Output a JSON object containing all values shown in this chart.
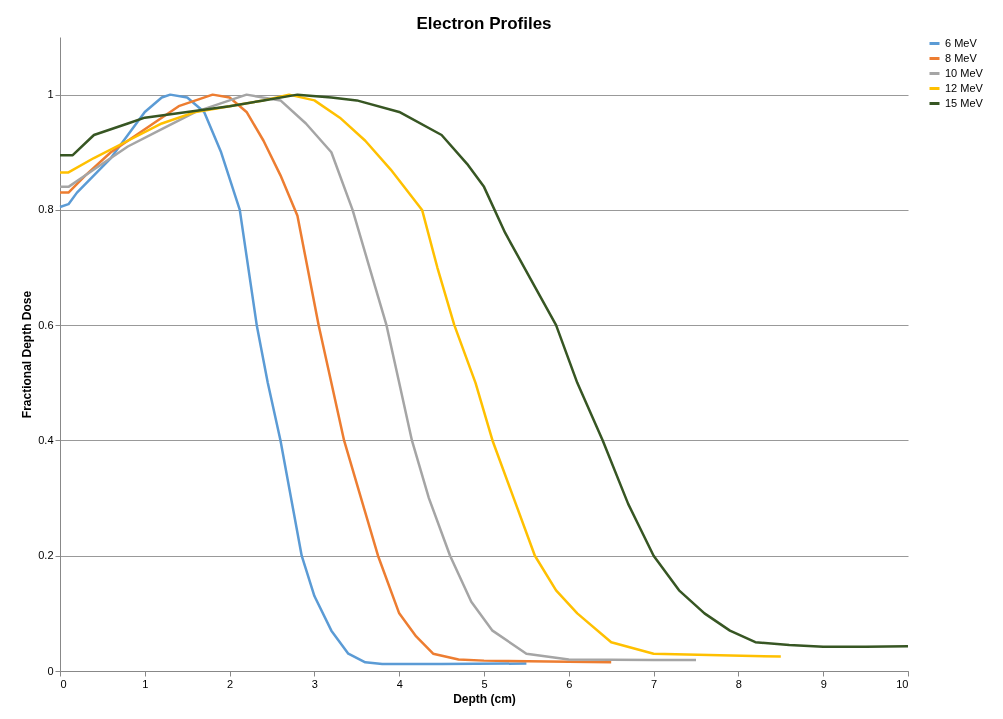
{
  "chart_data": {
    "type": "line",
    "title": "Electron Profiles",
    "xlabel": "Depth (cm)",
    "ylabel": "Fractional Depth Dose",
    "xlim": [
      0,
      10
    ],
    "xticks": [
      0,
      1,
      2,
      3,
      4,
      5,
      6,
      7,
      8,
      9,
      10
    ],
    "ylim": [
      0,
      1.1
    ],
    "yticks": [
      0,
      0.2,
      0.4,
      0.6,
      0.8,
      1
    ],
    "grid": "y",
    "legend": "right",
    "marker": "none",
    "line_style": "solid",
    "series": [
      {
        "name": "6 MeV",
        "color": "#5b9bd5",
        "x": [
          0,
          0.1,
          0.2,
          0.4,
          0.6,
          0.8,
          1.0,
          1.2,
          1.3,
          1.5,
          1.7,
          1.9,
          2.12,
          2.32,
          2.45,
          2.6,
          2.85,
          3.0,
          3.2,
          3.4,
          3.6,
          3.8,
          4.5,
          5.5
        ],
        "values": [
          0.805,
          0.81,
          0.83,
          0.86,
          0.89,
          0.93,
          0.97,
          0.995,
          1.0,
          0.995,
          0.97,
          0.9,
          0.8,
          0.6,
          0.5,
          0.4,
          0.2,
          0.13,
          0.07,
          0.03,
          0.015,
          0.012,
          0.012,
          0.013
        ]
      },
      {
        "name": "8 MeV",
        "color": "#ed7d31",
        "x": [
          0,
          0.1,
          0.3,
          0.6,
          1,
          1.4,
          1.8,
          2.0,
          2.2,
          2.4,
          2.6,
          2.8,
          3.05,
          3.2,
          3.35,
          3.55,
          3.75,
          4.0,
          4.2,
          4.4,
          4.7,
          5,
          6,
          6.5
        ],
        "values": [
          0.83,
          0.83,
          0.86,
          0.9,
          0.94,
          0.98,
          1.0,
          0.995,
          0.97,
          0.92,
          0.86,
          0.79,
          0.6,
          0.5,
          0.4,
          0.3,
          0.2,
          0.1,
          0.06,
          0.03,
          0.02,
          0.018,
          0.016,
          0.015
        ]
      },
      {
        "name": "10 MeV",
        "color": "#a5a5a5",
        "x": [
          0,
          0.1,
          0.4,
          0.8,
          1.2,
          1.6,
          2.0,
          2.2,
          2.6,
          2.9,
          3.2,
          3.45,
          3.65,
          3.85,
          4.0,
          4.15,
          4.35,
          4.6,
          4.85,
          5.1,
          5.5,
          6,
          7,
          7.5
        ],
        "values": [
          0.84,
          0.84,
          0.87,
          0.91,
          0.94,
          0.97,
          0.99,
          1.0,
          0.99,
          0.95,
          0.9,
          0.8,
          0.7,
          0.6,
          0.5,
          0.4,
          0.3,
          0.2,
          0.12,
          0.07,
          0.03,
          0.02,
          0.019,
          0.019
        ]
      },
      {
        "name": "12 MeV",
        "color": "#ffc000",
        "x": [
          0,
          0.1,
          0.4,
          0.8,
          1.2,
          1.6,
          2.0,
          2.4,
          2.7,
          3.0,
          3.3,
          3.6,
          3.9,
          4.27,
          4.45,
          4.65,
          4.9,
          5.1,
          5.35,
          5.6,
          5.85,
          6.1,
          6.5,
          7,
          8.5
        ],
        "values": [
          0.865,
          0.865,
          0.89,
          0.92,
          0.95,
          0.97,
          0.98,
          0.99,
          1.0,
          0.99,
          0.96,
          0.92,
          0.87,
          0.8,
          0.7,
          0.6,
          0.5,
          0.4,
          0.3,
          0.2,
          0.14,
          0.1,
          0.05,
          0.03,
          0.025
        ]
      },
      {
        "name": "15 MeV",
        "color": "#375623",
        "x": [
          0,
          0.15,
          0.4,
          0.8,
          1.0,
          1.5,
          2.0,
          2.4,
          2.8,
          3.2,
          3.5,
          4.0,
          4.5,
          4.8,
          5.0,
          5.25,
          5.55,
          5.85,
          6.1,
          6.4,
          6.7,
          7.0,
          7.3,
          7.6,
          7.9,
          8.2,
          8.6,
          9,
          9.5,
          10
        ],
        "values": [
          0.895,
          0.895,
          0.93,
          0.95,
          0.96,
          0.97,
          0.98,
          0.99,
          1.0,
          0.995,
          0.99,
          0.97,
          0.93,
          0.88,
          0.84,
          0.76,
          0.68,
          0.6,
          0.5,
          0.4,
          0.29,
          0.2,
          0.14,
          0.1,
          0.07,
          0.05,
          0.045,
          0.042,
          0.042,
          0.043
        ]
      }
    ]
  }
}
